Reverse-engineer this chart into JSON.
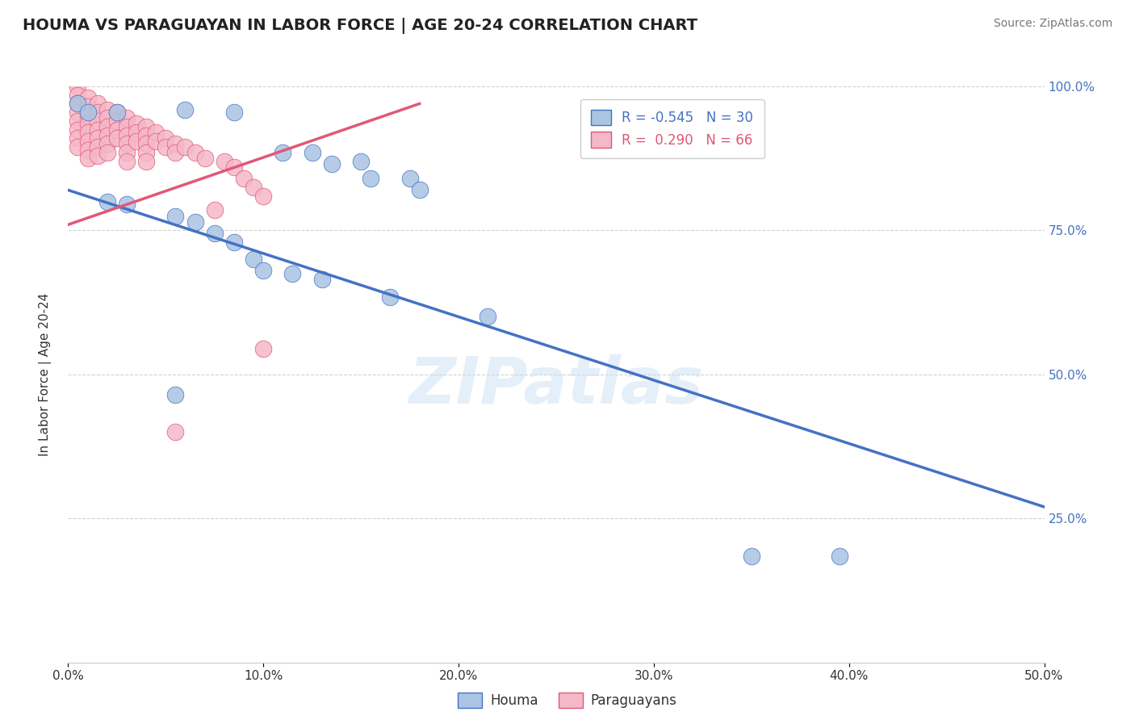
{
  "title": "HOUMA VS PARAGUAYAN IN LABOR FORCE | AGE 20-24 CORRELATION CHART",
  "source": "Source: ZipAtlas.com",
  "ylabel": "In Labor Force | Age 20-24",
  "xlim": [
    0.0,
    0.5
  ],
  "ylim": [
    0.0,
    1.0
  ],
  "xtick_vals": [
    0.0,
    0.1,
    0.2,
    0.3,
    0.4,
    0.5
  ],
  "xtick_labels": [
    "0.0%",
    "10.0%",
    "20.0%",
    "30.0%",
    "40.0%",
    "50.0%"
  ],
  "ytick_vals": [
    0.25,
    0.5,
    0.75,
    1.0
  ],
  "ytick_labels": [
    "25.0%",
    "50.0%",
    "75.0%",
    "100.0%"
  ],
  "houma_R": "-0.545",
  "houma_N": "30",
  "paraguayan_R": "0.290",
  "paraguayan_N": "66",
  "houma_color": "#aac4e2",
  "paraguayan_color": "#f5b8c8",
  "houma_line_color": "#4472c4",
  "paraguayan_line_color": "#e05878",
  "watermark_text": "ZIPatlas",
  "houma_trend_x": [
    0.0,
    0.5
  ],
  "houma_trend_y": [
    0.82,
    0.27
  ],
  "paraguayan_trend_x": [
    0.0,
    0.18
  ],
  "paraguayan_trend_y": [
    0.76,
    0.97
  ],
  "houma_points": [
    [
      0.005,
      0.97
    ],
    [
      0.01,
      0.955
    ],
    [
      0.025,
      0.955
    ],
    [
      0.06,
      0.96
    ],
    [
      0.085,
      0.955
    ],
    [
      0.11,
      0.885
    ],
    [
      0.125,
      0.885
    ],
    [
      0.135,
      0.865
    ],
    [
      0.15,
      0.87
    ],
    [
      0.155,
      0.84
    ],
    [
      0.175,
      0.84
    ],
    [
      0.18,
      0.82
    ],
    [
      0.02,
      0.8
    ],
    [
      0.03,
      0.795
    ],
    [
      0.055,
      0.775
    ],
    [
      0.065,
      0.765
    ],
    [
      0.075,
      0.745
    ],
    [
      0.085,
      0.73
    ],
    [
      0.095,
      0.7
    ],
    [
      0.1,
      0.68
    ],
    [
      0.115,
      0.675
    ],
    [
      0.13,
      0.665
    ],
    [
      0.165,
      0.635
    ],
    [
      0.215,
      0.6
    ],
    [
      0.055,
      0.465
    ],
    [
      0.35,
      0.185
    ],
    [
      0.395,
      0.185
    ]
  ],
  "paraguayan_points": [
    [
      0.005,
      1.0
    ],
    [
      0.005,
      0.985
    ],
    [
      0.005,
      0.97
    ],
    [
      0.005,
      0.955
    ],
    [
      0.005,
      0.94
    ],
    [
      0.005,
      0.925
    ],
    [
      0.005,
      0.91
    ],
    [
      0.005,
      0.895
    ],
    [
      0.01,
      0.98
    ],
    [
      0.01,
      0.965
    ],
    [
      0.01,
      0.95
    ],
    [
      0.01,
      0.935
    ],
    [
      0.01,
      0.92
    ],
    [
      0.01,
      0.905
    ],
    [
      0.01,
      0.89
    ],
    [
      0.01,
      0.875
    ],
    [
      0.015,
      0.97
    ],
    [
      0.015,
      0.955
    ],
    [
      0.015,
      0.94
    ],
    [
      0.015,
      0.925
    ],
    [
      0.015,
      0.91
    ],
    [
      0.015,
      0.895
    ],
    [
      0.015,
      0.88
    ],
    [
      0.02,
      0.96
    ],
    [
      0.02,
      0.945
    ],
    [
      0.02,
      0.93
    ],
    [
      0.02,
      0.915
    ],
    [
      0.02,
      0.9
    ],
    [
      0.02,
      0.885
    ],
    [
      0.025,
      0.955
    ],
    [
      0.025,
      0.94
    ],
    [
      0.025,
      0.925
    ],
    [
      0.025,
      0.91
    ],
    [
      0.03,
      0.945
    ],
    [
      0.03,
      0.93
    ],
    [
      0.03,
      0.915
    ],
    [
      0.03,
      0.9
    ],
    [
      0.03,
      0.885
    ],
    [
      0.03,
      0.87
    ],
    [
      0.035,
      0.935
    ],
    [
      0.035,
      0.92
    ],
    [
      0.035,
      0.905
    ],
    [
      0.04,
      0.93
    ],
    [
      0.04,
      0.915
    ],
    [
      0.04,
      0.9
    ],
    [
      0.04,
      0.885
    ],
    [
      0.04,
      0.87
    ],
    [
      0.045,
      0.92
    ],
    [
      0.045,
      0.905
    ],
    [
      0.05,
      0.91
    ],
    [
      0.05,
      0.895
    ],
    [
      0.055,
      0.9
    ],
    [
      0.055,
      0.885
    ],
    [
      0.06,
      0.895
    ],
    [
      0.065,
      0.885
    ],
    [
      0.07,
      0.875
    ],
    [
      0.08,
      0.87
    ],
    [
      0.085,
      0.86
    ],
    [
      0.09,
      0.84
    ],
    [
      0.095,
      0.825
    ],
    [
      0.1,
      0.81
    ],
    [
      0.075,
      0.785
    ],
    [
      0.1,
      0.545
    ],
    [
      0.055,
      0.4
    ]
  ]
}
